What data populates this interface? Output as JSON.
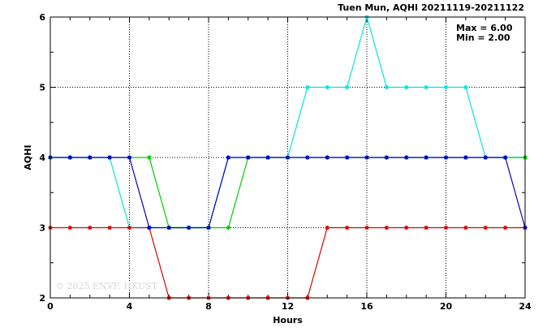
{
  "chart_data": {
    "type": "line",
    "title": "Tuen Mun, AQHI 20211119-20211122",
    "xlabel": "Hours",
    "ylabel": "AQHI",
    "xlim": [
      0,
      24
    ],
    "ylim": [
      2,
      6
    ],
    "xticks": [
      0,
      4,
      8,
      12,
      16,
      20,
      24
    ],
    "yticks": [
      2,
      3,
      4,
      5,
      6
    ],
    "grid": "dotted",
    "annotations": {
      "max": "Max = 6.00",
      "min": "Min = 2.00"
    },
    "watermark": "© 2025  ENVF, HKUST",
    "x": [
      0,
      1,
      2,
      3,
      4,
      5,
      6,
      7,
      8,
      9,
      10,
      11,
      12,
      13,
      14,
      15,
      16,
      17,
      18,
      19,
      20,
      21,
      22,
      23,
      24
    ],
    "series": [
      {
        "color": "#00e5e5",
        "values": [
          4,
          4,
          4,
          4,
          3,
          3,
          3,
          3,
          3,
          4,
          4,
          4,
          4,
          5,
          5,
          5,
          6,
          5,
          5,
          5,
          5,
          5,
          4,
          4,
          4
        ]
      },
      {
        "color": "#00cc00",
        "values": [
          4,
          4,
          4,
          4,
          4,
          4,
          3,
          3,
          3,
          3,
          4,
          4,
          4,
          4,
          4,
          4,
          4,
          4,
          4,
          4,
          4,
          4,
          4,
          4,
          4
        ]
      },
      {
        "color": "#dd0000",
        "values": [
          3,
          3,
          3,
          3,
          3,
          3,
          2,
          2,
          2,
          2,
          2,
          2,
          2,
          2,
          3,
          3,
          3,
          3,
          3,
          3,
          3,
          3,
          3,
          3,
          3
        ]
      },
      {
        "color": "#0000cc",
        "values": [
          4,
          4,
          4,
          4,
          4,
          3,
          3,
          3,
          3,
          4,
          4,
          4,
          4,
          4,
          4,
          4,
          4,
          4,
          4,
          4,
          4,
          4,
          4,
          4,
          3
        ]
      }
    ]
  }
}
